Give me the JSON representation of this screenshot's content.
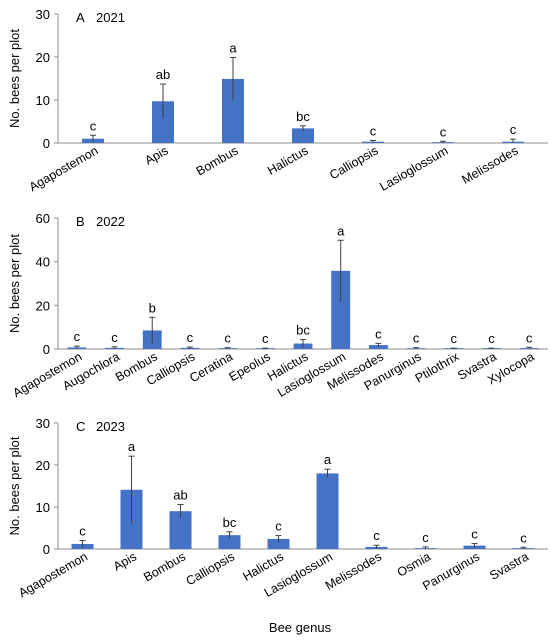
{
  "figure": {
    "xlabel": "Bee genus"
  },
  "chart_data": [
    {
      "type": "bar",
      "panel_label": "A",
      "year": "2021",
      "ylabel": "No. bees per plot",
      "ylim": [
        0,
        30
      ],
      "yticks": [
        0,
        10,
        20,
        30
      ],
      "categories": [
        "Agapostemon",
        "Apis",
        "Bombus",
        "Halictus",
        "Calliopsis",
        "Lasioglossum",
        "Melissodes"
      ],
      "values": [
        1.0,
        9.7,
        14.9,
        3.4,
        0.3,
        0.2,
        0.3
      ],
      "errors": [
        0.8,
        4.0,
        5.0,
        0.6,
        0.3,
        0.2,
        0.6
      ],
      "letters": [
        "c",
        "ab",
        "a",
        "bc",
        "c",
        "c",
        "c"
      ],
      "bar_color": "#4472C4"
    },
    {
      "type": "bar",
      "panel_label": "B",
      "year": "2022",
      "ylabel": "No. bees per plot",
      "ylim": [
        0,
        60
      ],
      "yticks": [
        0,
        20,
        40,
        60
      ],
      "categories": [
        "Agapostemon",
        "Augochlora",
        "Bombus",
        "Calliopsis",
        "Ceratina",
        "Epeolus",
        "Halictus",
        "Lasioglossum",
        "Melissodes",
        "Panurginus",
        "Ptilothrix",
        "Svastra",
        "Xylocopa"
      ],
      "values": [
        0.7,
        0.5,
        8.5,
        0.5,
        0.3,
        0.2,
        2.5,
        35.8,
        1.8,
        0.3,
        0.2,
        0.2,
        0.4
      ],
      "errors": [
        0.6,
        0.5,
        6.0,
        0.4,
        0.3,
        0.2,
        1.8,
        14.0,
        0.8,
        0.3,
        0.2,
        0.2,
        0.4
      ],
      "letters": [
        "c",
        "c",
        "b",
        "c",
        "c",
        "c",
        "bc",
        "a",
        "c",
        "c",
        "c",
        "c",
        "c"
      ],
      "bar_color": "#4472C4"
    },
    {
      "type": "bar",
      "panel_label": "C",
      "year": "2023",
      "ylabel": "No. bees per plot",
      "ylim": [
        0,
        30
      ],
      "yticks": [
        0,
        10,
        20,
        30
      ],
      "categories": [
        "Agapostemon",
        "Apis",
        "Bombus",
        "Calliopsis",
        "Halictus",
        "Lasioglossum",
        "Melissodes",
        "Osmia",
        "Panurginus",
        "Svastra"
      ],
      "values": [
        1.2,
        14.1,
        9.0,
        3.3,
        2.4,
        18.0,
        0.5,
        0.2,
        0.8,
        0.2
      ],
      "errors": [
        0.8,
        8.0,
        1.6,
        0.8,
        0.8,
        1.0,
        0.4,
        0.3,
        0.5,
        0.2
      ],
      "letters": [
        "c",
        "a",
        "ab",
        "bc",
        "c",
        "a",
        "c",
        "c",
        "c",
        "c"
      ],
      "bar_color": "#4472C4"
    }
  ]
}
